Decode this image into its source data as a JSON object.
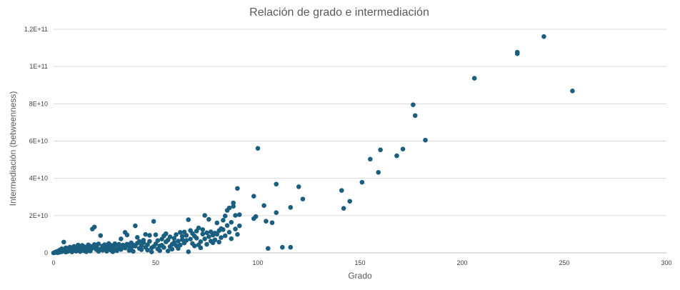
{
  "chart_data": {
    "type": "scatter",
    "title": "Relación de grado e intermediación",
    "xlabel": "Grado",
    "ylabel": "Intermediación (betweenness)",
    "xlim": [
      0,
      300
    ],
    "ylim": [
      0,
      120000000000
    ],
    "x_ticks": [
      0,
      50,
      100,
      150,
      200,
      250,
      300
    ],
    "x_tick_labels": [
      "0",
      "50",
      "100",
      "150",
      "200",
      "250",
      "300"
    ],
    "y_ticks": [
      0,
      20000000000,
      40000000000,
      60000000000,
      80000000000,
      100000000000,
      120000000000
    ],
    "y_tick_labels": [
      "0",
      "2E+10",
      "4E+10",
      "6E+10",
      "8E+10",
      "1E+11",
      "1,2E+11"
    ],
    "grid": "horizontal",
    "legend": "none",
    "marker_color": "#1a5e80",
    "series": [
      {
        "points": [
          [
            0,
            0
          ],
          [
            1,
            200000000
          ],
          [
            1,
            500000000
          ],
          [
            2,
            100000000
          ],
          [
            2,
            900000000
          ],
          [
            3,
            300000000
          ],
          [
            3,
            1500000000
          ],
          [
            4,
            600000000
          ],
          [
            4,
            2200000000
          ],
          [
            5,
            5800000000
          ],
          [
            5,
            1000000000
          ],
          [
            6,
            400000000
          ],
          [
            6,
            2700000000
          ],
          [
            7,
            1800000000
          ],
          [
            7,
            800000000
          ],
          [
            8,
            3100000000
          ],
          [
            8,
            1200000000
          ],
          [
            9,
            2000000000
          ],
          [
            9,
            500000000
          ],
          [
            10,
            3500000000
          ],
          [
            10,
            1600000000
          ],
          [
            11,
            900000000
          ],
          [
            11,
            2600000000
          ],
          [
            12,
            4200000000
          ],
          [
            12,
            1300000000
          ],
          [
            13,
            3000000000
          ],
          [
            13,
            700000000
          ],
          [
            14,
            2300000000
          ],
          [
            14,
            4000000000
          ],
          [
            15,
            1100000000
          ],
          [
            15,
            3300000000
          ],
          [
            16,
            2800000000
          ],
          [
            16,
            600000000
          ],
          [
            17,
            4300000000
          ],
          [
            17,
            1900000000
          ],
          [
            18,
            3600000000
          ],
          [
            18,
            1000000000
          ],
          [
            19,
            12800000000
          ],
          [
            19,
            2500000000
          ],
          [
            20,
            13900000000
          ],
          [
            20,
            4500000000
          ],
          [
            21,
            1700000000
          ],
          [
            21,
            3200000000
          ],
          [
            22,
            800000000
          ],
          [
            22,
            4800000000
          ],
          [
            23,
            2100000000
          ],
          [
            23,
            9300000000
          ],
          [
            24,
            3700000000
          ],
          [
            24,
            1400000000
          ],
          [
            25,
            4400000000
          ],
          [
            25,
            2200000000
          ],
          [
            26,
            900000000
          ],
          [
            26,
            3900000000
          ],
          [
            27,
            2700000000
          ],
          [
            27,
            5000000000
          ],
          [
            28,
            1500000000
          ],
          [
            28,
            4100000000
          ],
          [
            29,
            3400000000
          ],
          [
            29,
            600000000
          ],
          [
            30,
            4900000000
          ],
          [
            30,
            2400000000
          ],
          [
            31,
            3800000000
          ],
          [
            31,
            1200000000
          ],
          [
            32,
            4600000000
          ],
          [
            32,
            2900000000
          ],
          [
            33,
            7500000000
          ],
          [
            33,
            1800000000
          ],
          [
            34,
            4200000000
          ],
          [
            34,
            3100000000
          ],
          [
            35,
            11000000000
          ],
          [
            35,
            2600000000
          ],
          [
            36,
            9600000000
          ],
          [
            36,
            4700000000
          ],
          [
            37,
            3500000000
          ],
          [
            37,
            1300000000
          ],
          [
            38,
            5400000000
          ],
          [
            38,
            2800000000
          ],
          [
            39,
            4300000000
          ],
          [
            39,
            800000000
          ],
          [
            40,
            14500000000
          ],
          [
            40,
            3600000000
          ],
          [
            41,
            8300000000
          ],
          [
            41,
            5200000000
          ],
          [
            42,
            2400000000
          ],
          [
            42,
            6100000000
          ],
          [
            43,
            3900000000
          ],
          [
            43,
            1700000000
          ],
          [
            44,
            5500000000
          ],
          [
            44,
            6800000000
          ],
          [
            45,
            3000000000
          ],
          [
            45,
            9900000000
          ],
          [
            46,
            1500000000
          ],
          [
            46,
            4400000000
          ],
          [
            47,
            9400000000
          ],
          [
            47,
            6200000000
          ],
          [
            48,
            2700000000
          ],
          [
            48,
            500000000
          ],
          [
            49,
            16900000000
          ],
          [
            49,
            3400000000
          ],
          [
            50,
            4800000000
          ],
          [
            50,
            9700000000
          ],
          [
            51,
            2100000000
          ],
          [
            51,
            6600000000
          ],
          [
            52,
            3700000000
          ],
          [
            52,
            1200000000
          ],
          [
            53,
            4100000000
          ],
          [
            53,
            7400000000
          ],
          [
            54,
            9100000000
          ],
          [
            54,
            2900000000
          ],
          [
            55,
            10300000000
          ],
          [
            55,
            5900000000
          ],
          [
            56,
            1000000000
          ],
          [
            56,
            6900000000
          ],
          [
            57,
            3300000000
          ],
          [
            57,
            8600000000
          ],
          [
            58,
            4600000000
          ],
          [
            58,
            2000000000
          ],
          [
            59,
            7800000000
          ],
          [
            59,
            5600000000
          ],
          [
            60,
            9800000000
          ],
          [
            60,
            3900000000
          ],
          [
            61,
            2400000000
          ],
          [
            61,
            6300000000
          ],
          [
            62,
            11000000000
          ],
          [
            62,
            4200000000
          ],
          [
            63,
            7100000000
          ],
          [
            63,
            8900000000
          ],
          [
            64,
            5300000000
          ],
          [
            64,
            11200000000
          ],
          [
            65,
            6700000000
          ],
          [
            65,
            9400000000
          ],
          [
            66,
            17800000000
          ],
          [
            66,
            600000000
          ],
          [
            67,
            12000000000
          ],
          [
            67,
            7400000000
          ],
          [
            68,
            5000000000
          ],
          [
            68,
            10400000000
          ],
          [
            69,
            9000000000
          ],
          [
            69,
            3700000000
          ],
          [
            70,
            11700000000
          ],
          [
            70,
            7900000000
          ],
          [
            71,
            4300000000
          ],
          [
            71,
            13400000000
          ],
          [
            72,
            6000000000
          ],
          [
            72,
            2700000000
          ],
          [
            73,
            10100000000
          ],
          [
            73,
            12500000000
          ],
          [
            74,
            20100000000
          ],
          [
            74,
            7500000000
          ],
          [
            75,
            4600000000
          ],
          [
            75,
            10800000000
          ],
          [
            76,
            18000000000
          ],
          [
            76,
            8700000000
          ],
          [
            77,
            6300000000
          ],
          [
            77,
            11300000000
          ],
          [
            78,
            5400000000
          ],
          [
            78,
            9500000000
          ],
          [
            79,
            10600000000
          ],
          [
            79,
            7000000000
          ],
          [
            80,
            16100000000
          ],
          [
            80,
            10000000000
          ],
          [
            81,
            11900000000
          ],
          [
            81,
            5800000000
          ],
          [
            82,
            13000000000
          ],
          [
            82,
            8200000000
          ],
          [
            83,
            17500000000
          ],
          [
            83,
            12500000000
          ],
          [
            84,
            9200000000
          ],
          [
            84,
            19800000000
          ],
          [
            85,
            22800000000
          ],
          [
            85,
            14700000000
          ],
          [
            86,
            24100000000
          ],
          [
            86,
            11100000000
          ],
          [
            87,
            7600000000
          ],
          [
            87,
            16400000000
          ],
          [
            88,
            26800000000
          ],
          [
            88,
            25000000000
          ],
          [
            89,
            20100000000
          ],
          [
            89,
            12800000000
          ],
          [
            90,
            34600000000
          ],
          [
            90,
            9900000000
          ],
          [
            91,
            20500000000
          ],
          [
            91,
            14500000000
          ],
          [
            98,
            30400000000
          ],
          [
            98,
            18400000000
          ],
          [
            99,
            19500000000
          ],
          [
            100,
            56100000000
          ],
          [
            103,
            25400000000
          ],
          [
            104,
            17000000000
          ],
          [
            105,
            2400000000
          ],
          [
            107,
            16200000000
          ],
          [
            109,
            36900000000
          ],
          [
            109,
            21600000000
          ],
          [
            112,
            3000000000
          ],
          [
            116,
            24400000000
          ],
          [
            116,
            3000000000
          ],
          [
            120,
            35500000000
          ],
          [
            122,
            28900000000
          ],
          [
            141,
            33500000000
          ],
          [
            142,
            23900000000
          ],
          [
            145,
            27700000000
          ],
          [
            151,
            37900000000
          ],
          [
            155,
            50300000000
          ],
          [
            159,
            43200000000
          ],
          [
            160,
            55300000000
          ],
          [
            168,
            52100000000
          ],
          [
            171,
            55700000000
          ],
          [
            176,
            79500000000
          ],
          [
            177,
            73700000000
          ],
          [
            182,
            60500000000
          ],
          [
            206,
            93700000000
          ],
          [
            227,
            106900000000
          ],
          [
            227,
            107700000000
          ],
          [
            240,
            116100000000
          ],
          [
            254,
            86900000000
          ]
        ]
      }
    ]
  }
}
